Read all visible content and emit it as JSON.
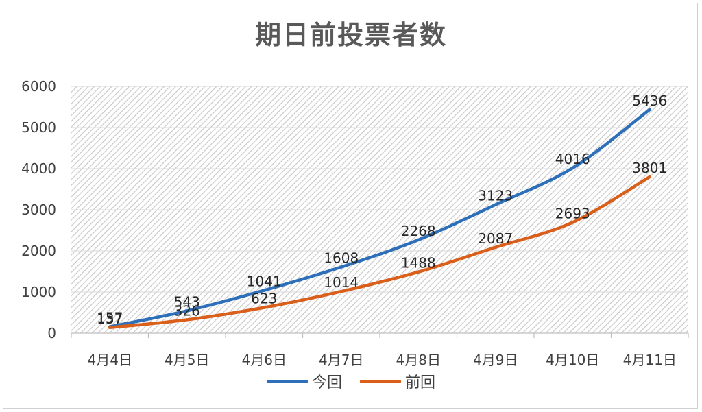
{
  "chart_data": {
    "type": "line",
    "title": "期日前投票者数",
    "categories": [
      "4月4日",
      "4月5日",
      "4月6日",
      "4月7日",
      "4月8日",
      "4月9日",
      "4月10日",
      "4月11日"
    ],
    "ylim": [
      0,
      6000
    ],
    "yticks": [
      0,
      1000,
      2000,
      3000,
      4000,
      5000,
      6000
    ],
    "grid": true,
    "legend_position": "bottom",
    "series": [
      {
        "name": "今回",
        "color": "#2e6fba",
        "values": [
          157,
          543,
          1041,
          1608,
          2268,
          3123,
          4016,
          5436
        ]
      },
      {
        "name": "前回",
        "color": "#d95f1a",
        "values": [
          137,
          326,
          623,
          1014,
          1488,
          2087,
          2693,
          3801
        ]
      }
    ]
  }
}
